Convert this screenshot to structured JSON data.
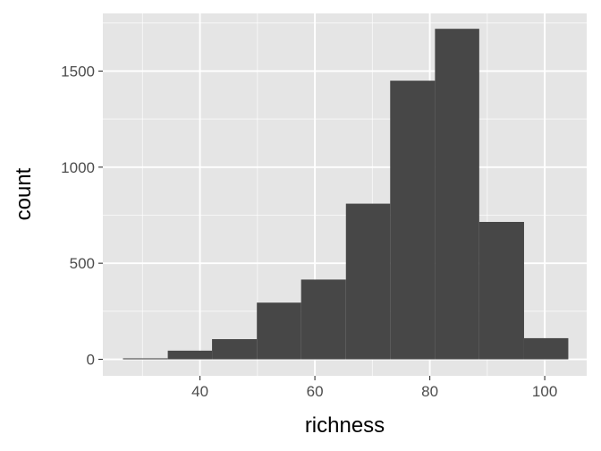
{
  "chart_data": {
    "type": "histogram",
    "title": "",
    "xlabel": "richness",
    "ylabel": "count",
    "xlim": [
      23.1,
      107.3
    ],
    "ylim": [
      -86,
      1800
    ],
    "x_ticks": [
      40,
      60,
      80,
      100
    ],
    "x_tick_labels": [
      "40",
      "60",
      "80",
      "100"
    ],
    "y_ticks": [
      0,
      500,
      1000,
      1500
    ],
    "y_tick_labels": [
      "0",
      "500",
      "1000",
      "1500"
    ],
    "grid": true,
    "legend": "none",
    "bins": [
      {
        "x_start": 26.6,
        "x_end": 34.4,
        "count": 5
      },
      {
        "x_start": 34.4,
        "x_end": 42.1,
        "count": 45
      },
      {
        "x_start": 42.1,
        "x_end": 49.9,
        "count": 105
      },
      {
        "x_start": 49.9,
        "x_end": 57.6,
        "count": 295
      },
      {
        "x_start": 57.6,
        "x_end": 65.4,
        "count": 415
      },
      {
        "x_start": 65.4,
        "x_end": 73.1,
        "count": 810
      },
      {
        "x_start": 73.1,
        "x_end": 80.9,
        "count": 1450
      },
      {
        "x_start": 80.9,
        "x_end": 88.6,
        "count": 1720
      },
      {
        "x_start": 88.6,
        "x_end": 96.4,
        "count": 715
      },
      {
        "x_start": 96.4,
        "x_end": 104.1,
        "count": 110
      }
    ]
  },
  "colors": {
    "panel_background": "#e5e5e5",
    "grid_major": "#ffffff",
    "bar_fill": "#474747",
    "tick_text": "#4d4d4d",
    "axis_title": "#000000"
  }
}
